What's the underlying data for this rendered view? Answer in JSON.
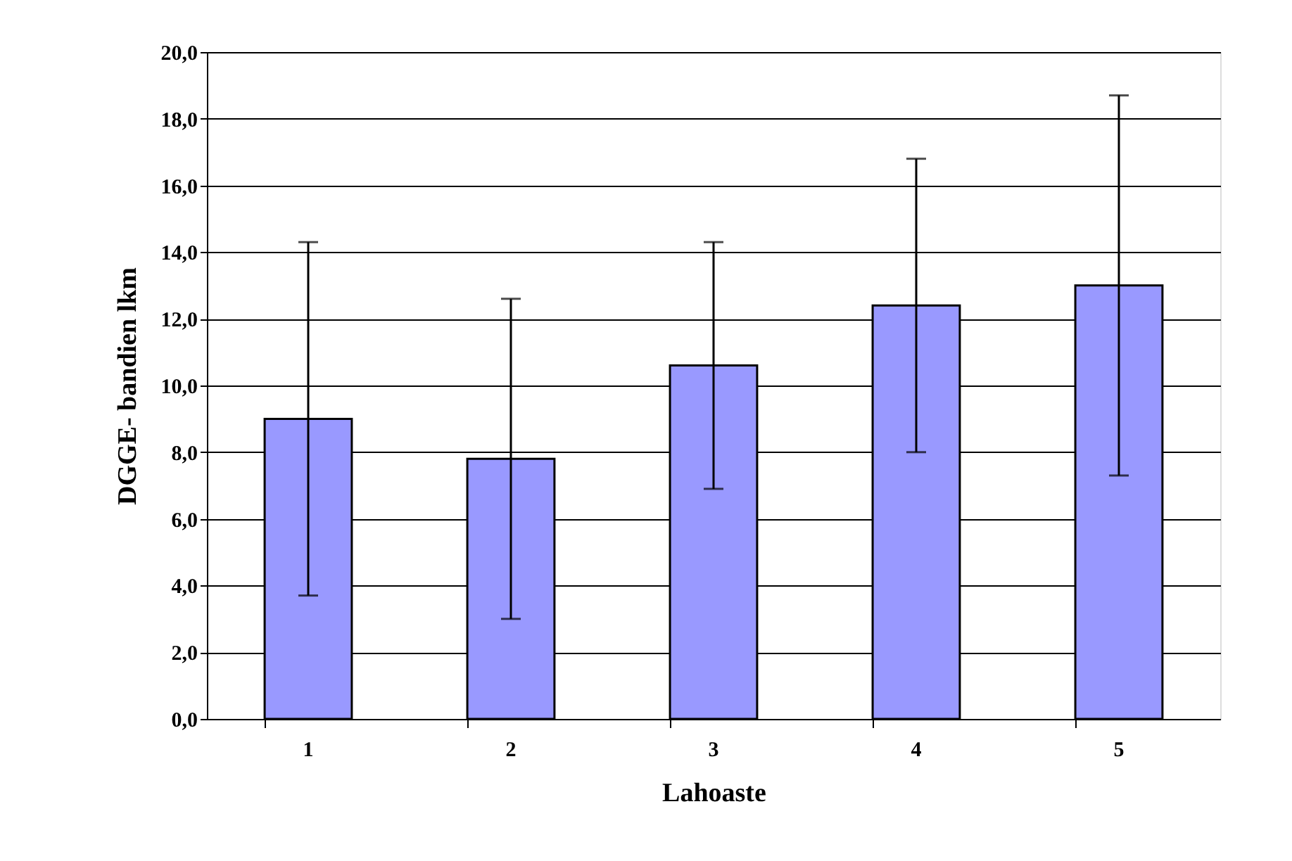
{
  "chart_data": {
    "type": "bar",
    "xlabel": "Lahoaste",
    "ylabel": "DGGE- bandien lkm",
    "categories": [
      "1",
      "2",
      "3",
      "4",
      "5"
    ],
    "values": [
      9.0,
      7.8,
      10.6,
      12.4,
      13.0
    ],
    "errors": [
      5.3,
      4.8,
      3.7,
      4.4,
      5.7
    ],
    "color": "#9999ff",
    "ylim": [
      0,
      20
    ],
    "yticks": [
      {
        "value": 0,
        "label": "0,0"
      },
      {
        "value": 2,
        "label": "2,0"
      },
      {
        "value": 4,
        "label": "4,0"
      },
      {
        "value": 6,
        "label": "6,0"
      },
      {
        "value": 8,
        "label": "8,0"
      },
      {
        "value": 10,
        "label": "10,0"
      },
      {
        "value": 12,
        "label": "12,0"
      },
      {
        "value": 14,
        "label": "14,0"
      },
      {
        "value": 16,
        "label": "16,0"
      },
      {
        "value": 18,
        "label": "18,0"
      },
      {
        "value": 20,
        "label": "20,0"
      }
    ],
    "grid": "y"
  }
}
